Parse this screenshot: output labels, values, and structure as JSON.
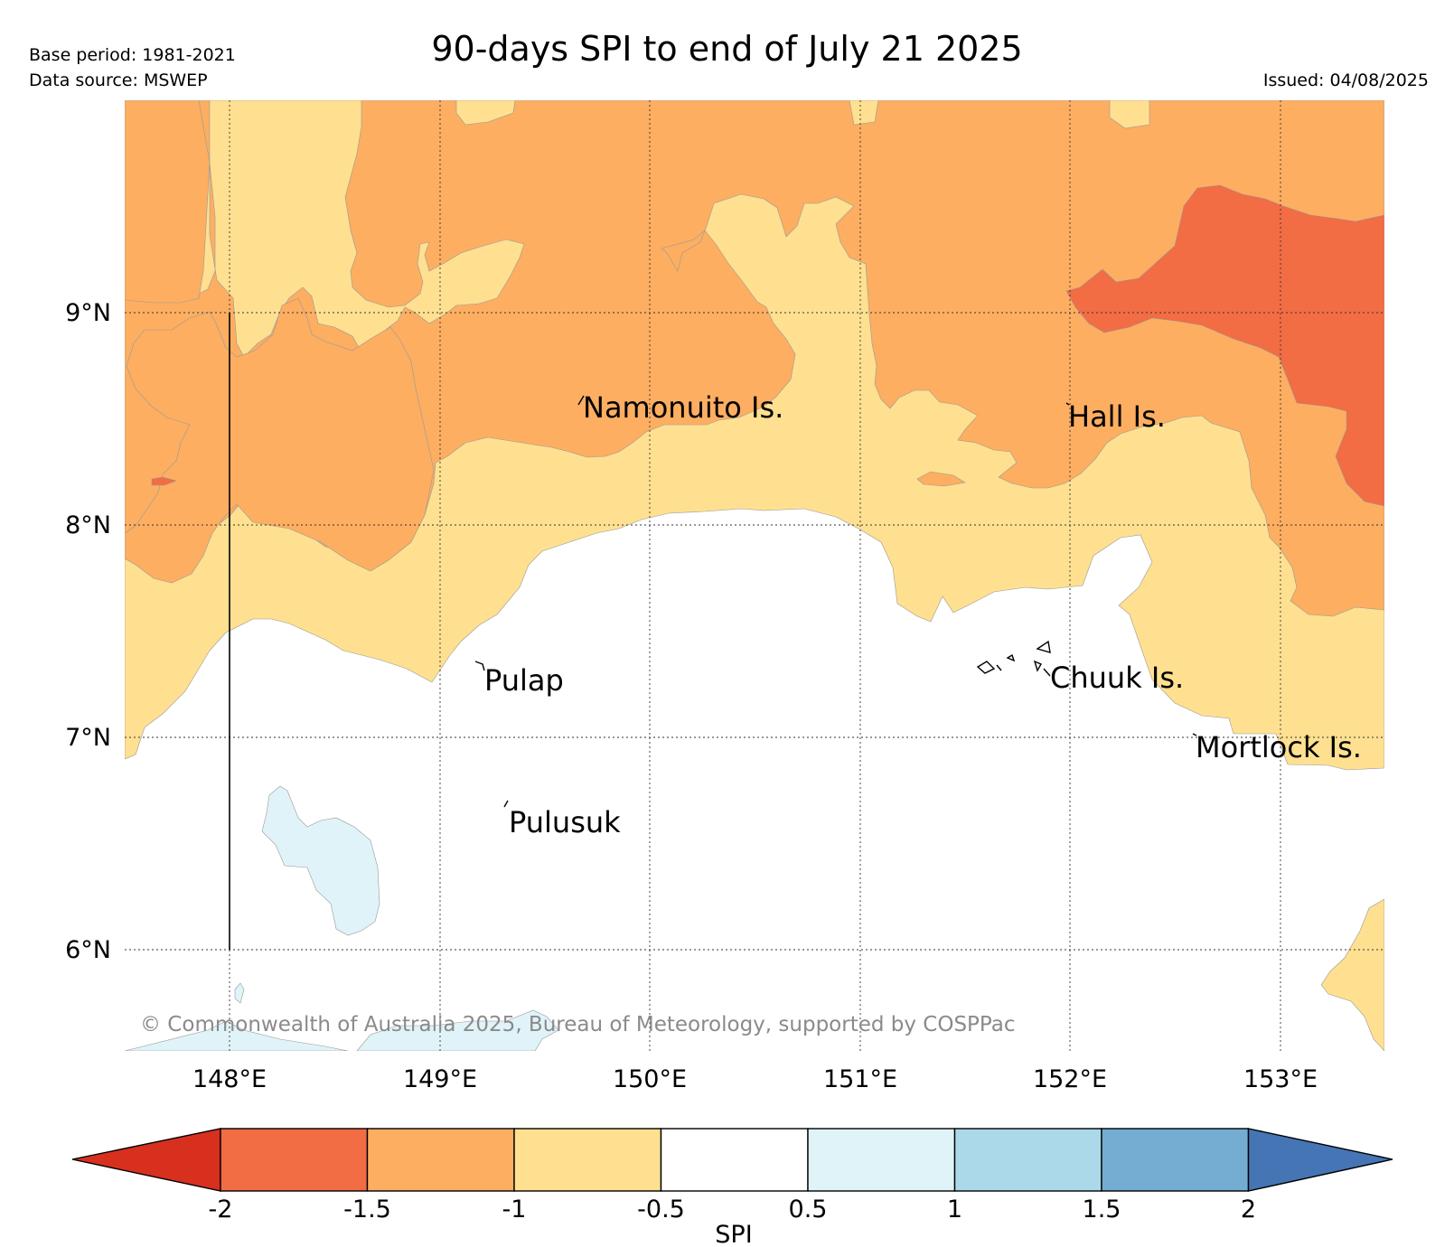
{
  "header": {
    "title": "90-days SPI to end of July 21 2025",
    "base_period": "Base period: 1981-2021",
    "data_source": "Data source: MSWEP",
    "issued": "Issued: 04/08/2025"
  },
  "map": {
    "lat_labels": [
      "9°N",
      "8°N",
      "7°N",
      "6°N"
    ],
    "lon_labels": [
      "148°E",
      "149°E",
      "150°E",
      "151°E",
      "152°E",
      "153°E"
    ],
    "places": [
      "Namonuito Is.",
      "Hall Is.",
      "Pulap",
      "Chuuk Is.",
      "Mortlock Is.",
      "Pulusuk"
    ],
    "copyright": "© Commonwealth of Australia 2025, Bureau of Meteorology, supported by COSPPac",
    "colors": {
      "below_-2": "#d7301f",
      "-2_to_-1.5": "#f26c44",
      "-1.5_to_-1": "#fdae61",
      "-1_to_-0.5": "#fee090",
      "-0.5_to_0.5": "#ffffff",
      "0.5_to_1": "#e0f3f8",
      "1_to_1.5": "#abd9e9",
      "1.5_to_2": "#74add1",
      "above_2": "#4575b4"
    }
  },
  "colorbar": {
    "ticks": [
      "-2",
      "-1.5",
      "-1",
      "-0.5",
      "0.5",
      "1",
      "1.5",
      "2"
    ],
    "label": "SPI"
  }
}
